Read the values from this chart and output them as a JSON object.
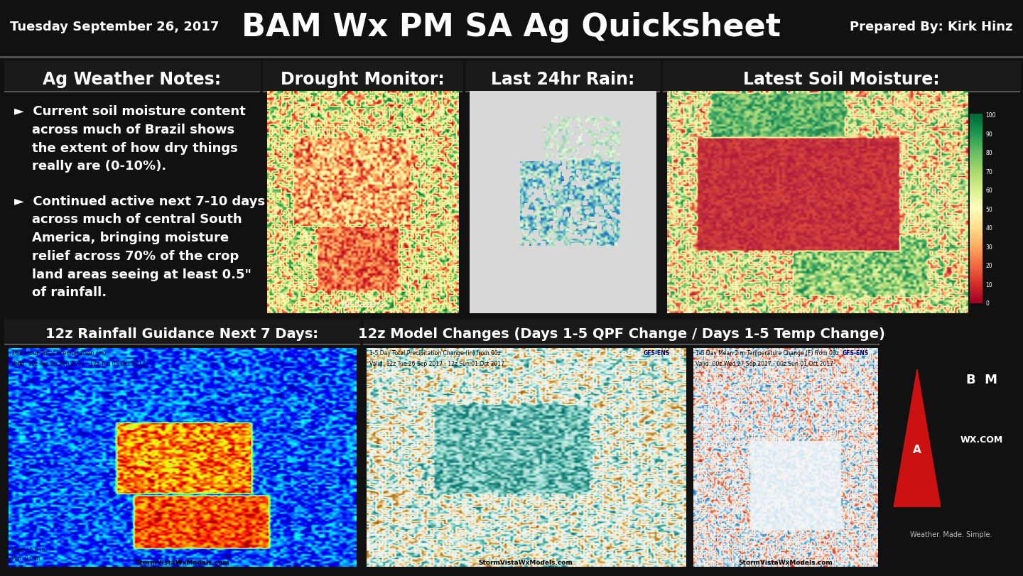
{
  "bg_color": "#111111",
  "header_bg": "#1a1a1a",
  "header_border": "#555555",
  "title": "BAM Wx PM SA Ag Quicksheet",
  "title_color": "#ffffff",
  "title_fontsize": 32,
  "date_text": "Tuesday September 26, 2017",
  "date_color": "#ffffff",
  "date_fontsize": 13,
  "prepared_text": "Prepared By: Kirk Hinz",
  "prepared_color": "#ffffff",
  "prepared_fontsize": 13,
  "section_title_color": "#ffffff",
  "section_title_fontsize": 17,
  "panel_bg": "#0d0d0d",
  "panel_border_color": "#555555",
  "ag_notes_title": "Ag Weather Notes:",
  "ag_notes_bullet1": "►  Current soil moisture content\n    across much of Brazil shows\n    the extent of how dry things\n    really are (0-10%).",
  "ag_notes_bullet2": "►  Continued active next 7-10 days\n    across much of central South\n    America, bringing moisture\n    relief across 70% of the crop\n    land areas seeing at least 0.5\"\n    of rainfall.",
  "notes_text_color": "#ffffff",
  "notes_text_fontsize": 13,
  "drought_title": "Drought Monitor:",
  "rain24_title": "Last 24hr Rain:",
  "soil_title": "Latest Soil Moisture:",
  "rainfall7_title": "12z Rainfall Guidance Next 7 Days:",
  "model_changes_title": "12z Model Changes (Days 1-5 QPF Change / Days 1-5 Temp Change)",
  "logo_subtext": "Weather. Made. Simple."
}
